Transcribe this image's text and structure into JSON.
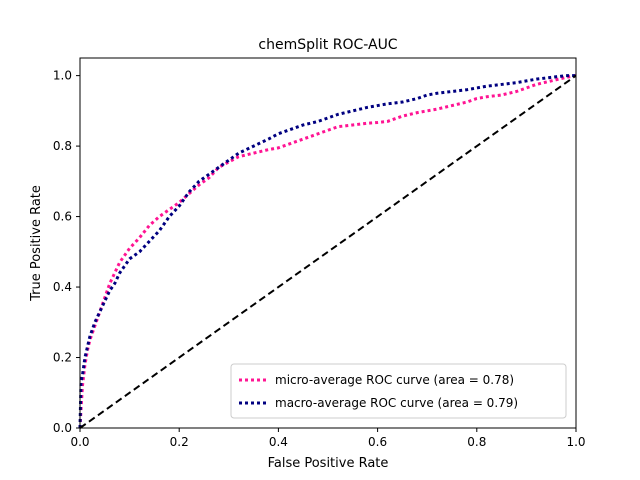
{
  "chart_data": {
    "type": "line",
    "title": "chemSplit ROC-AUC",
    "xlabel": "False Positive Rate",
    "ylabel": "True Positive Rate",
    "xlim": [
      0,
      1
    ],
    "ylim": [
      0,
      1.05
    ],
    "xticks": [
      "0.0",
      "0.2",
      "0.4",
      "0.6",
      "0.8",
      "1.0"
    ],
    "yticks": [
      "0.0",
      "0.2",
      "0.4",
      "0.6",
      "0.8",
      "1.0"
    ],
    "grid": false,
    "legend_position": "lower right",
    "series": [
      {
        "name": "micro-average ROC curve (area = 0.78)",
        "color": "#ff1493",
        "style": "dotted",
        "x": [
          0.0,
          0.002,
          0.005,
          0.01,
          0.015,
          0.02,
          0.03,
          0.04,
          0.05,
          0.06,
          0.07,
          0.08,
          0.09,
          0.1,
          0.12,
          0.14,
          0.16,
          0.18,
          0.2,
          0.22,
          0.24,
          0.26,
          0.28,
          0.3,
          0.32,
          0.35,
          0.38,
          0.4,
          0.42,
          0.45,
          0.48,
          0.5,
          0.52,
          0.55,
          0.58,
          0.6,
          0.62,
          0.65,
          0.68,
          0.7,
          0.72,
          0.75,
          0.78,
          0.8,
          0.82,
          0.85,
          0.88,
          0.9,
          0.92,
          0.95,
          0.98,
          1.0
        ],
        "y": [
          0.0,
          0.05,
          0.12,
          0.18,
          0.22,
          0.25,
          0.29,
          0.33,
          0.37,
          0.41,
          0.44,
          0.47,
          0.49,
          0.51,
          0.54,
          0.575,
          0.6,
          0.62,
          0.64,
          0.665,
          0.69,
          0.71,
          0.74,
          0.755,
          0.77,
          0.78,
          0.79,
          0.795,
          0.805,
          0.82,
          0.835,
          0.845,
          0.855,
          0.86,
          0.865,
          0.867,
          0.87,
          0.885,
          0.895,
          0.9,
          0.905,
          0.915,
          0.925,
          0.935,
          0.94,
          0.945,
          0.955,
          0.965,
          0.975,
          0.985,
          0.995,
          1.0
        ]
      },
      {
        "name": "macro-average ROC curve (area = 0.79)",
        "color": "#000080",
        "style": "dotted",
        "x": [
          0.0,
          0.002,
          0.005,
          0.01,
          0.015,
          0.02,
          0.03,
          0.04,
          0.05,
          0.06,
          0.07,
          0.08,
          0.09,
          0.1,
          0.12,
          0.14,
          0.16,
          0.18,
          0.2,
          0.22,
          0.24,
          0.26,
          0.28,
          0.3,
          0.32,
          0.35,
          0.38,
          0.4,
          0.42,
          0.45,
          0.48,
          0.5,
          0.52,
          0.55,
          0.58,
          0.6,
          0.62,
          0.65,
          0.68,
          0.7,
          0.72,
          0.75,
          0.78,
          0.8,
          0.82,
          0.85,
          0.88,
          0.9,
          0.92,
          0.95,
          0.98,
          1.0
        ],
        "y": [
          0.0,
          0.13,
          0.15,
          0.2,
          0.23,
          0.26,
          0.3,
          0.33,
          0.36,
          0.39,
          0.41,
          0.44,
          0.46,
          0.48,
          0.5,
          0.53,
          0.56,
          0.6,
          0.63,
          0.67,
          0.7,
          0.72,
          0.74,
          0.76,
          0.78,
          0.8,
          0.82,
          0.835,
          0.845,
          0.86,
          0.87,
          0.88,
          0.89,
          0.9,
          0.91,
          0.915,
          0.92,
          0.925,
          0.935,
          0.945,
          0.95,
          0.955,
          0.96,
          0.965,
          0.97,
          0.975,
          0.98,
          0.985,
          0.99,
          0.995,
          1.0,
          1.0
        ]
      },
      {
        "name": "",
        "color": "#000000",
        "style": "dashed",
        "x": [
          0,
          1
        ],
        "y": [
          0,
          1
        ]
      }
    ]
  }
}
